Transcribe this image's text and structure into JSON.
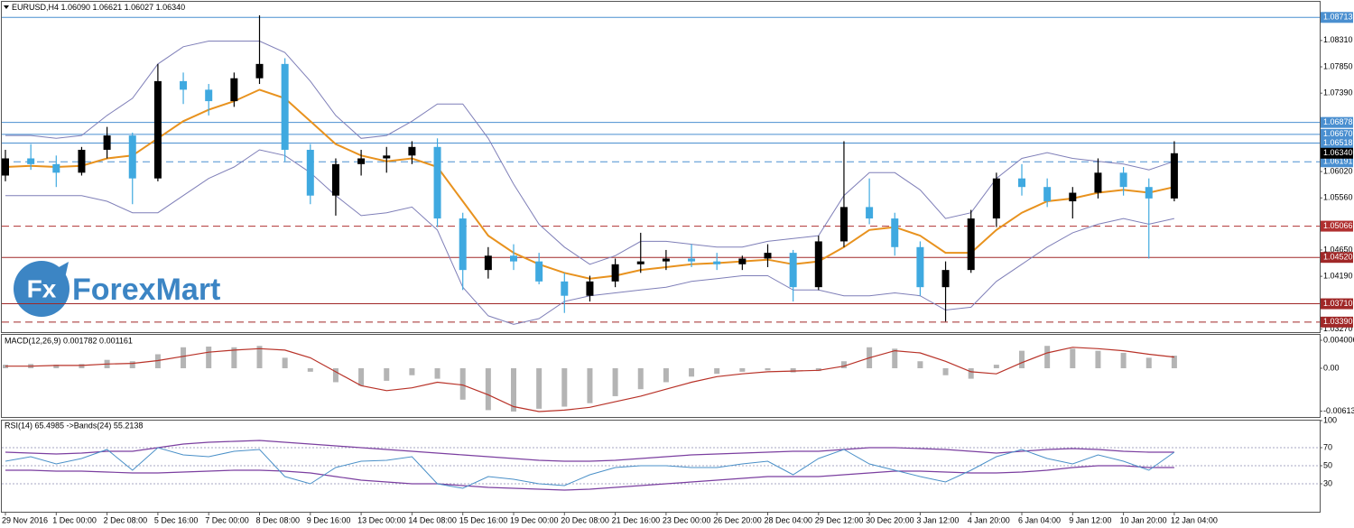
{
  "watermark": {
    "icon": "Fx",
    "name": "ForexMart"
  },
  "chart_data": [
    {
      "type": "candlestick",
      "title": "EURUSD,H4  1.06090 1.06621 1.06027 1.06340",
      "categories": [
        "29 Nov 2016",
        null,
        "1 Dec 00:00",
        null,
        "2 Dec 08:00",
        null,
        "5 Dec 16:00",
        null,
        "7 Dec 00:00",
        null,
        "8 Dec 08:00",
        null,
        "9 Dec 16:00",
        null,
        "13 Dec 00:00",
        null,
        "14 Dec 08:00",
        null,
        "15 Dec 16:00",
        null,
        "19 Dec 00:00",
        null,
        "20 Dec 08:00",
        null,
        "21 Dec 16:00",
        null,
        "23 Dec 00:00",
        null,
        "26 Dec 20:00",
        null,
        "28 Dec 04:00",
        null,
        "29 Dec 12:00",
        null,
        "30 Dec 20:00",
        null,
        "3 Jan 12:00",
        null,
        "4 Jan 20:00",
        null,
        "6 Jan 04:00",
        null,
        "9 Jan 12:00",
        null,
        "10 Jan 20:00",
        null,
        "12 Jan 04:00"
      ],
      "open": [
        1.0595,
        1.0625,
        1.0615,
        1.06,
        1.064,
        1.0665,
        1.059,
        1.076,
        1.0745,
        1.0725,
        1.0765,
        1.079,
        1.064,
        1.056,
        1.0615,
        1.0625,
        1.063,
        1.0645,
        1.052,
        1.043,
        1.0455,
        1.0445,
        1.041,
        1.0385,
        1.041,
        1.044,
        1.0445,
        1.045,
        1.0445,
        1.044,
        1.045,
        1.046,
        1.04,
        1.048,
        1.054,
        1.052,
        1.047,
        1.04,
        1.043,
        1.052,
        1.059,
        1.0575,
        1.055,
        1.0565,
        1.06,
        1.0575,
        1.0555
      ],
      "high": [
        1.064,
        1.065,
        1.063,
        1.0645,
        1.068,
        1.067,
        1.079,
        1.0775,
        1.0755,
        1.0775,
        1.0875,
        1.08,
        1.065,
        1.0625,
        1.064,
        1.0645,
        1.0655,
        1.066,
        1.053,
        1.047,
        1.0475,
        1.046,
        1.0425,
        1.042,
        1.045,
        1.0495,
        1.0465,
        1.0475,
        1.046,
        1.0455,
        1.0475,
        1.0465,
        1.049,
        1.0655,
        1.059,
        1.053,
        1.048,
        1.0445,
        1.0535,
        1.06,
        1.0615,
        1.059,
        1.0575,
        1.0625,
        1.061,
        1.059,
        1.0655
      ],
      "low": [
        1.0585,
        1.0605,
        1.0575,
        1.0595,
        1.0625,
        1.0545,
        1.0585,
        1.072,
        1.07,
        1.0715,
        1.0755,
        1.062,
        1.0545,
        1.0525,
        1.0595,
        1.06,
        1.0615,
        1.0505,
        1.0395,
        1.0415,
        1.043,
        1.0405,
        1.0355,
        1.0375,
        1.04,
        1.0425,
        1.043,
        1.0435,
        1.043,
        1.043,
        1.0435,
        1.0375,
        1.0395,
        1.047,
        1.051,
        1.0455,
        1.0385,
        1.034,
        1.0425,
        1.0505,
        1.056,
        1.054,
        1.052,
        1.0555,
        1.056,
        1.045,
        1.055
      ],
      "close": [
        1.0625,
        1.0615,
        1.06,
        1.064,
        1.0665,
        1.059,
        1.076,
        1.0745,
        1.0725,
        1.0765,
        1.079,
        1.064,
        1.056,
        1.0615,
        1.0625,
        1.063,
        1.0645,
        1.052,
        1.043,
        1.0455,
        1.0445,
        1.041,
        1.0385,
        1.041,
        1.044,
        1.0445,
        1.045,
        1.0445,
        1.044,
        1.045,
        1.046,
        1.04,
        1.048,
        1.054,
        1.052,
        1.047,
        1.04,
        1.043,
        1.052,
        1.059,
        1.0575,
        1.055,
        1.0565,
        1.06,
        1.0575,
        1.0555,
        1.0634
      ],
      "up_color": "#000000",
      "down_color": "#3fa9e0",
      "ma": {
        "color": "#e8921e",
        "values": [
          1.061,
          1.0612,
          1.061,
          1.0612,
          1.0625,
          1.063,
          1.066,
          1.069,
          1.071,
          1.0725,
          1.0745,
          1.073,
          1.069,
          1.065,
          1.063,
          1.062,
          1.0625,
          1.061,
          1.055,
          1.049,
          1.046,
          1.044,
          1.0425,
          1.0415,
          1.042,
          1.043,
          1.0435,
          1.044,
          1.0442,
          1.0445,
          1.0448,
          1.044,
          1.0445,
          1.047,
          1.05,
          1.0505,
          1.049,
          1.046,
          1.046,
          1.05,
          1.053,
          1.055,
          1.0555,
          1.0565,
          1.057,
          1.0565,
          1.0575
        ]
      },
      "bands": {
        "color": "#7f7fb8",
        "upper": [
          1.0665,
          1.0665,
          1.066,
          1.0665,
          1.07,
          1.073,
          1.079,
          1.082,
          1.083,
          1.083,
          1.083,
          1.081,
          1.076,
          1.07,
          1.066,
          1.0665,
          1.069,
          1.072,
          1.072,
          1.066,
          1.058,
          1.051,
          1.047,
          1.044,
          1.0455,
          1.048,
          1.048,
          1.0475,
          1.047,
          1.047,
          1.048,
          1.0485,
          1.049,
          1.056,
          1.06,
          1.06,
          1.057,
          1.052,
          1.053,
          1.059,
          1.0625,
          1.0635,
          1.0625,
          1.062,
          1.0615,
          1.0605,
          1.062
        ],
        "lower": [
          1.056,
          1.056,
          1.056,
          1.056,
          1.055,
          1.053,
          1.053,
          1.056,
          1.059,
          1.061,
          1.064,
          1.063,
          1.06,
          1.056,
          1.0525,
          1.053,
          1.054,
          1.05,
          1.04,
          1.035,
          1.0335,
          1.0345,
          1.0375,
          1.0385,
          1.039,
          1.0395,
          1.04,
          1.041,
          1.0415,
          1.042,
          1.042,
          1.0395,
          1.0395,
          1.0385,
          1.0385,
          1.039,
          1.0385,
          1.036,
          1.0365,
          1.041,
          1.044,
          1.047,
          1.0495,
          1.051,
          1.052,
          1.051,
          1.052
        ]
      },
      "levels": [
        {
          "value": 1.08713,
          "label": "1.08713",
          "color": "#4a8fd0",
          "style": "solid"
        },
        {
          "value": 1.06878,
          "label": "1.06878",
          "color": "#4a8fd0",
          "style": "solid"
        },
        {
          "value": 1.0667,
          "label": "1.06670",
          "color": "#4a8fd0",
          "style": "solid"
        },
        {
          "value": 1.06518,
          "label": "1.06518",
          "color": "#4a8fd0",
          "style": "solid"
        },
        {
          "value": 1.06191,
          "label": "1.06191",
          "color": "#4a8fd0",
          "style": "dashed"
        },
        {
          "value": 1.05066,
          "label": "1.05066",
          "color": "#b03030",
          "style": "dashed"
        },
        {
          "value": 1.0452,
          "label": "1.04520",
          "color": "#a02828",
          "style": "solid"
        },
        {
          "value": 1.0371,
          "label": "1.03710",
          "color": "#a02828",
          "style": "solid"
        },
        {
          "value": 1.0339,
          "label": "1.03390",
          "color": "#a02828",
          "style": "dashed"
        }
      ],
      "current": {
        "value": 1.0634,
        "label": "1.06340"
      },
      "ylim": [
        1.0323,
        1.0897
      ],
      "yticks": [
        {
          "value": 1.0831,
          "label": "1.08310"
        },
        {
          "value": 1.0785,
          "label": "1.07850"
        },
        {
          "value": 1.0739,
          "label": "1.07390"
        },
        {
          "value": 1.0602,
          "label": "1.06020"
        },
        {
          "value": 1.0556,
          "label": "1.05560"
        },
        {
          "value": 1.0465,
          "label": "1.04650"
        },
        {
          "value": 1.0419,
          "label": "1.04190"
        },
        {
          "value": 1.0327,
          "label": "1.03270"
        }
      ]
    },
    {
      "type": "bar",
      "title": "MACD(12,26,9) 0.001782 0.001161",
      "color": "#b4b4b4",
      "values": [
        0.0005,
        0.0006,
        0.0005,
        0.0006,
        0.0012,
        0.001,
        0.002,
        0.003,
        0.0031,
        0.003,
        0.0032,
        0.0015,
        -0.0005,
        -0.002,
        -0.0025,
        -0.0018,
        -0.001,
        -0.0015,
        -0.0045,
        -0.006,
        -0.0062,
        -0.0058,
        -0.0055,
        -0.005,
        -0.004,
        -0.003,
        -0.002,
        -0.0012,
        -0.0008,
        -0.0005,
        -0.0003,
        -0.0006,
        -0.0004,
        0.001,
        0.003,
        0.0028,
        0.001,
        -0.001,
        -0.0015,
        0.0005,
        0.0025,
        0.0032,
        0.0028,
        0.0025,
        0.0022,
        0.0015,
        0.0018
      ],
      "signal": {
        "color": "#b83228",
        "values": [
          0.0003,
          0.0003,
          0.0004,
          0.0004,
          0.0006,
          0.0007,
          0.0011,
          0.0017,
          0.0023,
          0.0026,
          0.0028,
          0.0026,
          0.0015,
          -0.0005,
          -0.0025,
          -0.0032,
          -0.0028,
          -0.002,
          -0.0024,
          -0.0038,
          -0.0055,
          -0.0062,
          -0.006,
          -0.0056,
          -0.0048,
          -0.004,
          -0.003,
          -0.002,
          -0.0012,
          -0.0008,
          -0.0005,
          -0.0004,
          -0.0003,
          0.0003,
          0.0015,
          0.0025,
          0.0022,
          0.001,
          -0.0005,
          -0.0008,
          0.0008,
          0.0022,
          0.003,
          0.0028,
          0.0025,
          0.002,
          0.0016
        ]
      },
      "ylim": [
        -0.00698,
        0.00478
      ],
      "yticks": [
        0.004006,
        {
          "value": 0,
          "label": "0.00"
        },
        -0.006139
      ]
    },
    {
      "type": "line",
      "title": "RSI(14) 65.4985  ->Bands(24) 55.2138",
      "color": "#4a90c8",
      "values": [
        55,
        60,
        52,
        58,
        68,
        45,
        70,
        62,
        60,
        66,
        68,
        38,
        30,
        48,
        55,
        56,
        60,
        30,
        25,
        38,
        35,
        30,
        28,
        40,
        48,
        50,
        50,
        48,
        48,
        52,
        55,
        40,
        58,
        68,
        52,
        45,
        38,
        32,
        45,
        60,
        68,
        58,
        52,
        62,
        55,
        45,
        65
      ],
      "bands": {
        "color": "#7b3fa0",
        "upper": [
          65,
          64,
          63,
          64,
          66,
          66,
          70,
          74,
          76,
          77,
          78,
          76,
          74,
          72,
          70,
          68,
          66,
          64,
          62,
          60,
          58,
          56,
          55,
          55,
          56,
          58,
          60,
          62,
          63,
          64,
          65,
          66,
          66,
          68,
          70,
          70,
          69,
          68,
          66,
          64,
          66,
          68,
          69,
          68,
          66,
          65,
          65
        ],
        "lower": [
          45,
          45,
          44,
          44,
          43,
          42,
          42,
          43,
          44,
          45,
          45,
          44,
          42,
          38,
          34,
          32,
          30,
          30,
          28,
          26,
          25,
          24,
          23,
          24,
          26,
          28,
          30,
          32,
          34,
          36,
          38,
          38,
          38,
          40,
          42,
          44,
          44,
          43,
          42,
          42,
          43,
          45,
          48,
          50,
          50,
          48,
          48
        ]
      },
      "ylim": [
        0,
        100
      ],
      "yticks": [
        100,
        70,
        50,
        30
      ]
    }
  ]
}
